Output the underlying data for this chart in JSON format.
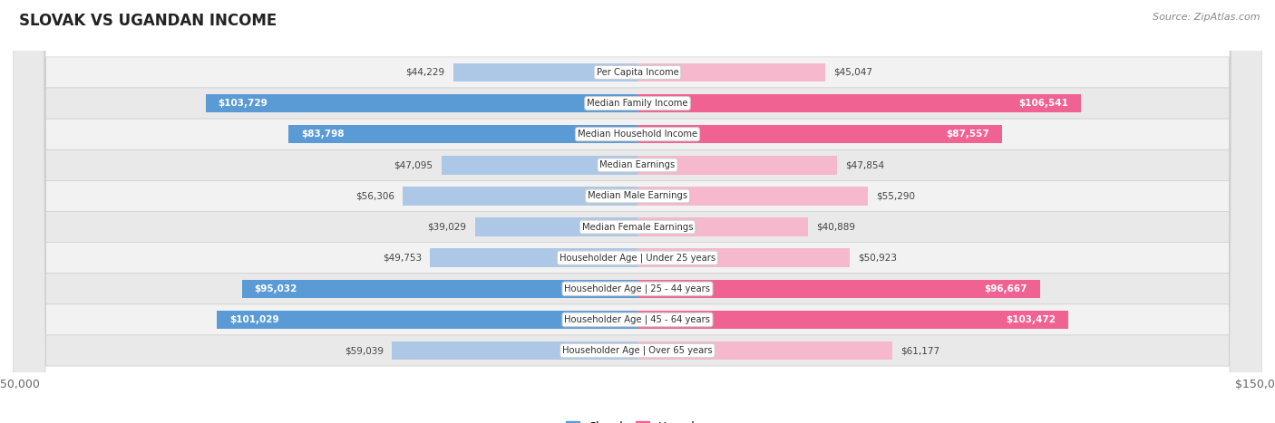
{
  "title": "Slovak vs Ugandan Income",
  "source": "Source: ZipAtlas.com",
  "categories": [
    "Per Capita Income",
    "Median Family Income",
    "Median Household Income",
    "Median Earnings",
    "Median Male Earnings",
    "Median Female Earnings",
    "Householder Age | Under 25 years",
    "Householder Age | 25 - 44 years",
    "Householder Age | 45 - 64 years",
    "Householder Age | Over 65 years"
  ],
  "slovak_values": [
    44229,
    103729,
    83798,
    47095,
    56306,
    39029,
    49753,
    95032,
    101029,
    59039
  ],
  "ugandan_values": [
    45047,
    106541,
    87557,
    47854,
    55290,
    40889,
    50923,
    96667,
    103472,
    61177
  ],
  "slovak_labels": [
    "$44,229",
    "$103,729",
    "$83,798",
    "$47,095",
    "$56,306",
    "$39,029",
    "$49,753",
    "$95,032",
    "$101,029",
    "$59,039"
  ],
  "ugandan_labels": [
    "$45,047",
    "$106,541",
    "$87,557",
    "$47,854",
    "$55,290",
    "$40,889",
    "$50,923",
    "$96,667",
    "$103,472",
    "$61,177"
  ],
  "slovak_color_light": "#adc8e6",
  "slovak_color_dark": "#5b9bd5",
  "ugandan_color_light": "#f5b8cc",
  "ugandan_color_dark": "#f06292",
  "max_value": 150000,
  "bg_color": "#ffffff",
  "row_bg_even": "#f0f0f0",
  "row_bg_odd": "#e8e8e8",
  "legend_slovak": "Slovak",
  "legend_ugandan": "Ugandan",
  "slovak_threshold": 75000,
  "ugandan_threshold": 75000
}
